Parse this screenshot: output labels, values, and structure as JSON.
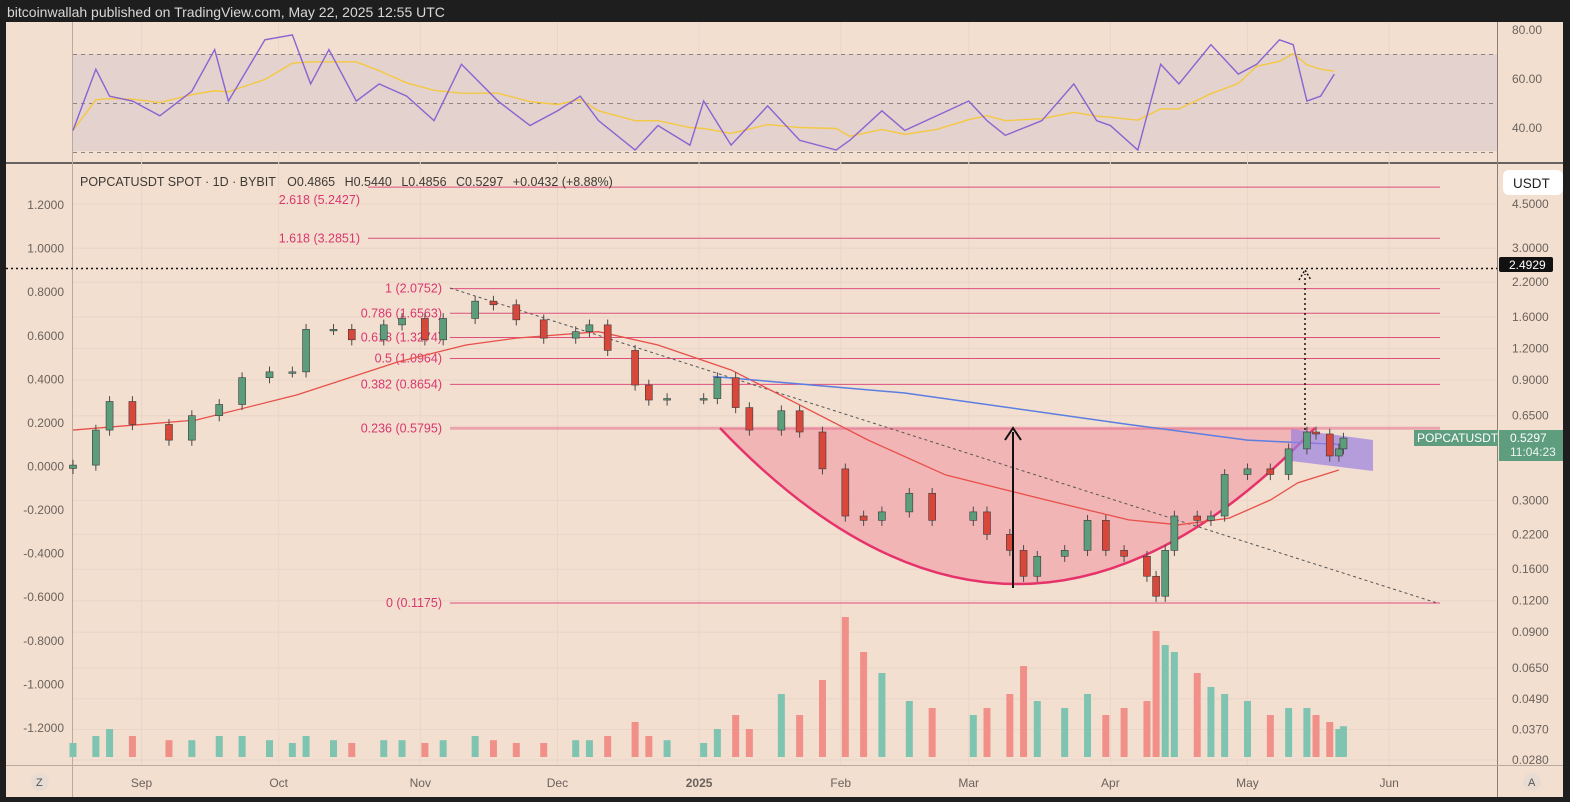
{
  "header": {
    "published": "bitcoinwallah published on TradingView.com, May 22, 2025 12:55 UTC"
  },
  "legend": {
    "symbol": "POPCATUSDT SPOT · 1D · BYBIT",
    "open": "O0.4865",
    "high": "H0.5440",
    "low": "L0.4856",
    "close": "C0.5297",
    "change": "+0.0432 (+8.88%)"
  },
  "right_axis": {
    "currency": "USDT",
    "ticks": [
      "4.5000",
      "3.0000",
      "2.2000",
      "1.6000",
      "1.2000",
      "0.9000",
      "0.6500",
      "0.3000",
      "0.2200",
      "0.1600",
      "0.1200",
      "0.0900",
      "0.0650",
      "0.0490",
      "0.0370",
      "0.0280"
    ]
  },
  "left_axis": {
    "ticks": [
      "1.2000",
      "1.0000",
      "0.8000",
      "0.6000",
      "0.4000",
      "0.2000",
      "0.0000",
      "-0.2000",
      "-0.4000",
      "-0.6000",
      "-0.8000",
      "-1.0000",
      "-1.2000"
    ]
  },
  "rsi_axis": {
    "ticks": [
      "80.00",
      "60.00",
      "40.00"
    ]
  },
  "time_axis": {
    "labels": [
      "Sep",
      "Oct",
      "Nov",
      "Dec",
      "2025",
      "Feb",
      "Mar",
      "Apr",
      "May",
      "Jun"
    ],
    "left_button": "Z",
    "right_button": "A"
  },
  "price_labels": {
    "target": "2.4929",
    "symbol": "POPCATUSDT",
    "last": "0.5297",
    "countdown": "11:04:23"
  },
  "fib_levels": [
    {
      "label": "2.618 (5.2427)",
      "price": 5.2427
    },
    {
      "label": "1.618 (3.2851)",
      "price": 3.2851
    },
    {
      "label": "1 (2.0752)",
      "price": 2.0752
    },
    {
      "label": "0.786 (1.6563)",
      "price": 1.6563
    },
    {
      "label": "0.618 (1.3274)",
      "price": 1.3274
    },
    {
      "label": "0.5 (1.0964)",
      "price": 1.0964
    },
    {
      "label": "0.382 (0.8654)",
      "price": 0.8654
    },
    {
      "label": "0.236 (0.5795)",
      "price": 0.5795
    },
    {
      "label": "0 (0.1175)",
      "price": 0.1175
    }
  ],
  "colors": {
    "background": "#f2dfd0",
    "up": "#5c9e7c",
    "down": "#d9473b",
    "vol_up": "#7fc4b0",
    "vol_down": "#f09088",
    "rsi": "#8a63d2",
    "rsi_ma": "#f5c842",
    "ma": "#e8504a",
    "ma_long": "#5b7ee0",
    "fib": "#d9376e",
    "cup": "#f2a7ae"
  },
  "chart_data": {
    "type": "candlestick",
    "scale": "log",
    "candles_close": [
      [
        "2024-08-17",
        0.414
      ],
      [
        "2024-08-22",
        0.57
      ],
      [
        "2024-08-25",
        0.74
      ],
      [
        "2024-08-30",
        0.6
      ],
      [
        "2024-09-07",
        0.52
      ],
      [
        "2024-09-12",
        0.65
      ],
      [
        "2024-09-18",
        0.72
      ],
      [
        "2024-09-23",
        0.92
      ],
      [
        "2024-09-29",
        0.97
      ],
      [
        "2024-10-04",
        0.97
      ],
      [
        "2024-10-07",
        1.43
      ],
      [
        "2024-10-13",
        1.43
      ],
      [
        "2024-10-17",
        1.3
      ],
      [
        "2024-10-24",
        1.49
      ],
      [
        "2024-10-28",
        1.58
      ],
      [
        "2024-11-02",
        1.3
      ],
      [
        "2024-11-06",
        1.58
      ],
      [
        "2024-11-13",
        1.85
      ],
      [
        "2024-11-17",
        1.79
      ],
      [
        "2024-11-22",
        1.56
      ],
      [
        "2024-11-28",
        1.32
      ],
      [
        "2024-12-05",
        1.4
      ],
      [
        "2024-12-08",
        1.49
      ],
      [
        "2024-12-12",
        1.18
      ],
      [
        "2024-12-18",
        0.86
      ],
      [
        "2024-12-21",
        0.75
      ],
      [
        "2024-12-25",
        0.76
      ],
      [
        "2025-01-02",
        0.76
      ],
      [
        "2025-01-05",
        0.92
      ],
      [
        "2025-01-09",
        0.7
      ],
      [
        "2025-01-12",
        0.57
      ],
      [
        "2025-01-19",
        0.68
      ],
      [
        "2025-01-23",
        0.56
      ],
      [
        "2025-01-28",
        0.4
      ],
      [
        "2025-02-02",
        0.26
      ],
      [
        "2025-02-06",
        0.25
      ],
      [
        "2025-02-10",
        0.27
      ],
      [
        "2025-02-16",
        0.32
      ],
      [
        "2025-02-21",
        0.25
      ],
      [
        "2025-03-02",
        0.27
      ],
      [
        "2025-03-05",
        0.22
      ],
      [
        "2025-03-10",
        0.19
      ],
      [
        "2025-03-13",
        0.15
      ],
      [
        "2025-03-16",
        0.18
      ],
      [
        "2025-03-22",
        0.19
      ],
      [
        "2025-03-27",
        0.25
      ],
      [
        "2025-03-31",
        0.19
      ],
      [
        "2025-04-04",
        0.18
      ],
      [
        "2025-04-09",
        0.15
      ],
      [
        "2025-04-11",
        0.125
      ],
      [
        "2025-04-13",
        0.19
      ],
      [
        "2025-04-15",
        0.26
      ],
      [
        "2025-04-20",
        0.25
      ],
      [
        "2025-04-23",
        0.26
      ],
      [
        "2025-04-26",
        0.38
      ],
      [
        "2025-05-01",
        0.4
      ],
      [
        "2025-05-06",
        0.38
      ],
      [
        "2025-05-10",
        0.48
      ],
      [
        "2025-05-14",
        0.56
      ],
      [
        "2025-05-16",
        0.55
      ],
      [
        "2025-05-19",
        0.45
      ],
      [
        "2025-05-21",
        0.48
      ],
      [
        "2025-05-22",
        0.5297
      ]
    ],
    "volume_relative": [
      0.1,
      0.15,
      0.2,
      0.15,
      0.12,
      0.12,
      0.15,
      0.15,
      0.12,
      0.1,
      0.15,
      0.12,
      0.1,
      0.12,
      0.12,
      0.1,
      0.12,
      0.15,
      0.12,
      0.1,
      0.1,
      0.12,
      0.12,
      0.15,
      0.25,
      0.15,
      0.12,
      0.1,
      0.2,
      0.3,
      0.2,
      0.45,
      0.3,
      0.55,
      1.0,
      0.75,
      0.6,
      0.4,
      0.35,
      0.3,
      0.35,
      0.45,
      0.65,
      0.4,
      0.35,
      0.45,
      0.3,
      0.35,
      0.4,
      0.9,
      0.8,
      0.75,
      0.6,
      0.5,
      0.45,
      0.4,
      0.3,
      0.35,
      0.35,
      0.3,
      0.25,
      0.2,
      0.22
    ],
    "ma_short": [
      [
        "2024-08-17",
        0.57
      ],
      [
        "2024-09-13",
        0.625
      ],
      [
        "2024-10-05",
        0.786
      ],
      [
        "2024-10-27",
        1.061
      ],
      [
        "2024-11-11",
        1.24
      ],
      [
        "2024-11-22",
        1.32
      ],
      [
        "2024-12-10",
        1.4
      ],
      [
        "2024-12-23",
        1.24
      ],
      [
        "2025-01-08",
        0.987
      ],
      [
        "2025-01-23",
        0.717
      ],
      [
        "2025-02-07",
        0.52
      ],
      [
        "2025-02-24",
        0.378
      ],
      [
        "2025-03-18",
        0.301
      ],
      [
        "2025-04-05",
        0.251
      ],
      [
        "2025-04-16",
        0.24
      ],
      [
        "2025-04-27",
        0.255
      ],
      [
        "2025-05-06",
        0.301
      ],
      [
        "2025-05-12",
        0.352
      ],
      [
        "2025-05-21",
        0.396
      ]
    ],
    "ma_long": [
      [
        "2025-01-04",
        0.93
      ],
      [
        "2025-02-15",
        0.8
      ],
      [
        "2025-04-05",
        0.6
      ],
      [
        "2025-05-01",
        0.52
      ],
      [
        "2025-05-21",
        0.5
      ]
    ],
    "rsi": [
      [
        "2024-08-17",
        39
      ],
      [
        "2024-08-22",
        64
      ],
      [
        "2024-08-25",
        53
      ],
      [
        "2024-08-30",
        51
      ],
      [
        "2024-09-05",
        45
      ],
      [
        "2024-09-12",
        55
      ],
      [
        "2024-09-17",
        72
      ],
      [
        "2024-09-20",
        51
      ],
      [
        "2024-09-28",
        76
      ],
      [
        "2024-10-04",
        78
      ],
      [
        "2024-10-08",
        58
      ],
      [
        "2024-10-12",
        72
      ],
      [
        "2024-10-18",
        51
      ],
      [
        "2024-10-23",
        58
      ],
      [
        "2024-10-29",
        53
      ],
      [
        "2024-11-04",
        43
      ],
      [
        "2024-11-10",
        66
      ],
      [
        "2024-11-18",
        51
      ],
      [
        "2024-11-25",
        41
      ],
      [
        "2024-12-01",
        47
      ],
      [
        "2024-12-06",
        53
      ],
      [
        "2024-12-10",
        43
      ],
      [
        "2024-12-18",
        31
      ],
      [
        "2024-12-23",
        41
      ],
      [
        "2024-12-30",
        33
      ],
      [
        "2025-01-02",
        51
      ],
      [
        "2025-01-08",
        33
      ],
      [
        "2025-01-16",
        49
      ],
      [
        "2025-01-23",
        35
      ],
      [
        "2025-01-31",
        31
      ],
      [
        "2025-02-03",
        35
      ],
      [
        "2025-02-10",
        47
      ],
      [
        "2025-02-15",
        39
      ],
      [
        "2025-02-22",
        45
      ],
      [
        "2025-03-01",
        51
      ],
      [
        "2025-03-05",
        43
      ],
      [
        "2025-03-09",
        37
      ],
      [
        "2025-03-17",
        43
      ],
      [
        "2025-03-24",
        58
      ],
      [
        "2025-03-29",
        43
      ],
      [
        "2025-04-01",
        41
      ],
      [
        "2025-04-07",
        31
      ],
      [
        "2025-04-12",
        66
      ],
      [
        "2025-04-16",
        58
      ],
      [
        "2025-04-23",
        74
      ],
      [
        "2025-04-29",
        62
      ],
      [
        "2025-05-03",
        66
      ],
      [
        "2025-05-08",
        76
      ],
      [
        "2025-05-11",
        74
      ],
      [
        "2025-05-14",
        51
      ],
      [
        "2025-05-17",
        53
      ],
      [
        "2025-05-20",
        62
      ]
    ],
    "rsi_bands": [
      70,
      50,
      30
    ],
    "target_price": 2.4929,
    "grid": true
  }
}
